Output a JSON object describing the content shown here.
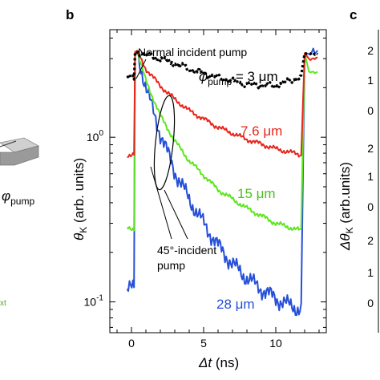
{
  "panels": {
    "left_partial": {
      "symbol": "φ",
      "subscript": "pump",
      "caption_fragment": "xt"
    },
    "b": {
      "letter": "b"
    },
    "c": {
      "letter": "c",
      "ylabel_prefix": "Δθ",
      "ylabel_sub": "K",
      "ylabel_suffix": " (arb.units)",
      "tick_fragments": [
        "2",
        "1",
        "0",
        "2",
        "1",
        "0",
        "2",
        "1",
        "0"
      ]
    }
  },
  "annotations": {
    "normal": "Normal incident pump",
    "oblique_line1": "45°-incident",
    "oblique_line2": "pump"
  },
  "chart_data": {
    "type": "line",
    "xlabel_var": "Δt",
    "xlabel_unit": " (ns)",
    "ylabel_prefix": "θ",
    "ylabel_sub": "K",
    "ylabel_suffix": " (arb. units)",
    "yscale": "log",
    "xlim": [
      -1.5,
      13.5
    ],
    "ylim": [
      0.065,
      4.5
    ],
    "xticks": [
      0,
      5,
      10
    ],
    "xtick_labels": [
      "0",
      "5",
      "10"
    ],
    "yticks": [
      0.1,
      1
    ],
    "ytick_labels_base": [
      "10",
      "10"
    ],
    "ytick_labels_exp": [
      "-1",
      "0"
    ],
    "series": [
      {
        "label_prefix": "φ",
        "label_sub": "pump",
        "label_suffix": " = 3 μm",
        "color": "#000000",
        "style": "dotted",
        "pre": 2.3,
        "peak": 3.3,
        "decay": [
          [
            0.4,
            3.3
          ],
          [
            2,
            3.0
          ],
          [
            4,
            2.6
          ],
          [
            6,
            2.3
          ],
          [
            8,
            2.1
          ],
          [
            10,
            2.05
          ],
          [
            11.5,
            2.3
          ]
        ],
        "reset": 3.2
      },
      {
        "label": "7.6 μm",
        "color": "#e8261e",
        "style": "solid",
        "pre": 0.78,
        "peak": 3.3,
        "decay": [
          [
            0.4,
            3.3
          ],
          [
            1,
            2.6
          ],
          [
            2,
            2.05
          ],
          [
            3,
            1.7
          ],
          [
            4,
            1.45
          ],
          [
            6,
            1.15
          ],
          [
            8,
            0.97
          ],
          [
            10,
            0.85
          ],
          [
            11.8,
            0.78
          ]
        ],
        "reset": 3.0
      },
      {
        "label": "15 μm",
        "color": "#5ee61e",
        "style": "solid",
        "pre": 0.28,
        "peak": 3.3,
        "decay": [
          [
            0.4,
            3.3
          ],
          [
            1,
            2.2
          ],
          [
            2,
            1.35
          ],
          [
            3,
            0.95
          ],
          [
            4,
            0.72
          ],
          [
            6,
            0.48
          ],
          [
            8,
            0.37
          ],
          [
            10,
            0.3
          ],
          [
            11.8,
            0.27
          ]
        ],
        "reset": 2.5
      },
      {
        "label": "28 μm",
        "color": "#2750d8",
        "style": "solid",
        "pre": 0.12,
        "peak": 3.3,
        "decay": [
          [
            0.4,
            3.3
          ],
          [
            1,
            2.0
          ],
          [
            2,
            1.05
          ],
          [
            3,
            0.62
          ],
          [
            4,
            0.42
          ],
          [
            5,
            0.3
          ],
          [
            6,
            0.22
          ],
          [
            7,
            0.17
          ],
          [
            8,
            0.14
          ],
          [
            9,
            0.12
          ],
          [
            10,
            0.105
          ],
          [
            11,
            0.095
          ],
          [
            11.8,
            0.09
          ]
        ],
        "reset": 3.2
      }
    ]
  }
}
